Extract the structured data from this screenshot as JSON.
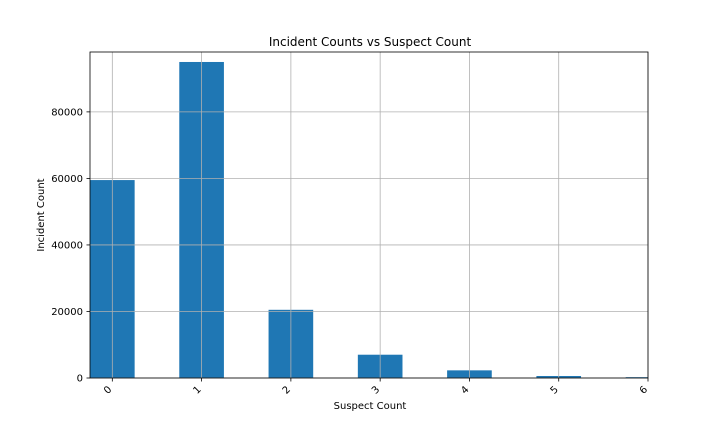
{
  "chart_data": {
    "type": "bar",
    "title": "Incident Counts vs Suspect Count",
    "xlabel": "Suspect Count",
    "ylabel": "Incident Count",
    "categories": [
      "0",
      "1",
      "2",
      "3",
      "4",
      "5",
      "6"
    ],
    "values": [
      59500,
      95000,
      20500,
      7000,
      2300,
      600,
      250
    ],
    "ylim": [
      0,
      98000
    ],
    "yticks": [
      0,
      20000,
      40000,
      60000,
      80000
    ],
    "ytick_labels": [
      "0",
      "20000",
      "40000",
      "60000",
      "80000"
    ],
    "grid": true,
    "legend": "none",
    "colors": {
      "bar": "#1f77b4",
      "grid": "#b0b0b0",
      "axes": "#000000"
    }
  }
}
